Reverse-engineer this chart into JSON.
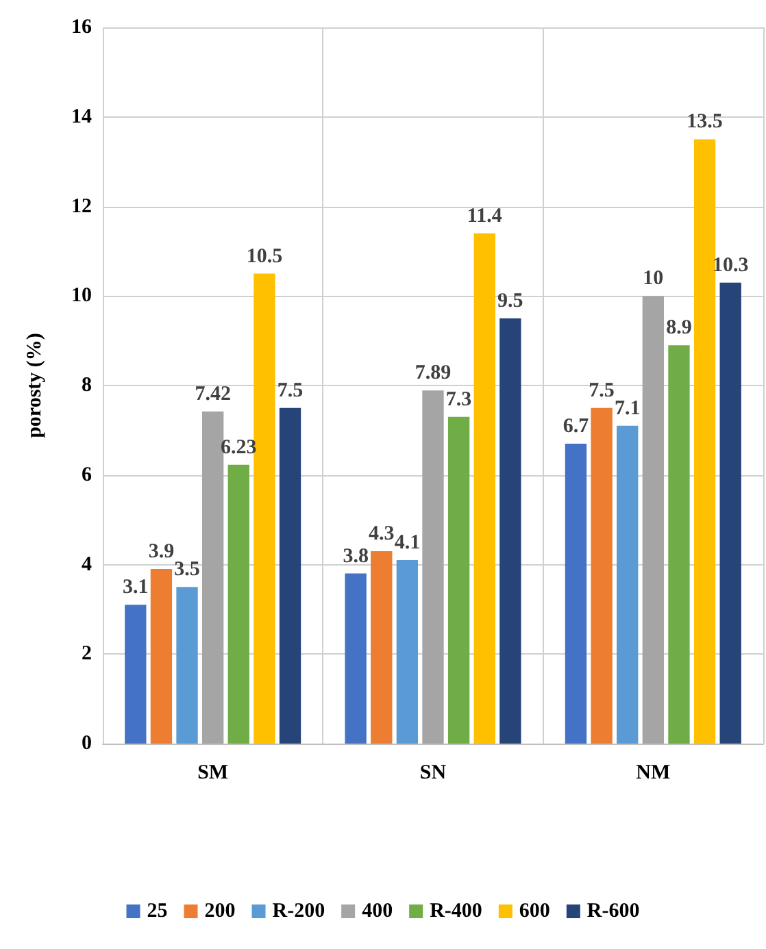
{
  "chart_data": {
    "type": "bar",
    "ylabel": "porosty (%)",
    "categories": [
      "SM",
      "SN",
      "NM"
    ],
    "series": [
      {
        "name": "25",
        "color": "#4472c4",
        "values": [
          3.1,
          3.8,
          6.7
        ]
      },
      {
        "name": "200",
        "color": "#ed7d31",
        "values": [
          3.9,
          4.3,
          7.5
        ]
      },
      {
        "name": "R-200",
        "color": "#5b9bd5",
        "values": [
          3.5,
          4.1,
          7.1
        ]
      },
      {
        "name": "400",
        "color": "#a5a5a5",
        "values": [
          7.42,
          7.89,
          10
        ]
      },
      {
        "name": "R-400",
        "color": "#70ad47",
        "values": [
          6.23,
          7.3,
          8.9
        ]
      },
      {
        "name": "600",
        "color": "#ffc000",
        "values": [
          10.5,
          11.4,
          13.5
        ]
      },
      {
        "name": "R-600",
        "color": "#264478",
        "values": [
          7.5,
          9.5,
          10.3
        ]
      }
    ],
    "ylim": [
      0,
      16
    ],
    "yticks": [
      0,
      2,
      4,
      6,
      8,
      10,
      12,
      14,
      16
    ],
    "grid": true,
    "legend": "bottom",
    "data_labels": true
  }
}
